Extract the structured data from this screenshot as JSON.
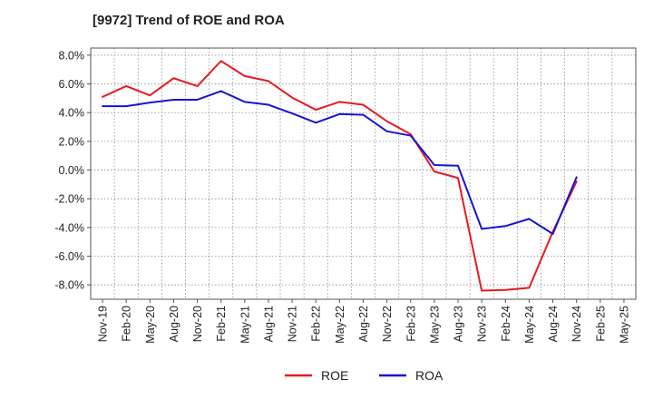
{
  "chart_data": {
    "type": "line",
    "title": "[9972]  Trend of ROE and ROA",
    "xlabel": "",
    "ylabel": "",
    "categories": [
      "Nov-19",
      "Feb-20",
      "May-20",
      "Aug-20",
      "Nov-20",
      "Feb-21",
      "May-21",
      "Aug-21",
      "Nov-21",
      "Feb-22",
      "May-22",
      "Aug-22",
      "Nov-22",
      "Feb-23",
      "May-23",
      "Aug-23",
      "Nov-23",
      "Feb-24",
      "May-24",
      "Aug-24",
      "Nov-24",
      "Feb-25",
      "May-25"
    ],
    "y_tick_labels": [
      "8.0%",
      "6.0%",
      "4.0%",
      "2.0%",
      "0.0%",
      "-2.0%",
      "-4.0%",
      "-6.0%",
      "-8.0%"
    ],
    "ylim": [
      -9.0,
      8.5
    ],
    "grid": true,
    "legend_position": "bottom",
    "series": [
      {
        "name": "ROE",
        "color": "#e8191f",
        "values": [
          5.1,
          5.85,
          5.2,
          6.4,
          5.85,
          7.6,
          6.55,
          6.2,
          5.05,
          4.2,
          4.75,
          4.55,
          3.4,
          2.5,
          -0.1,
          -0.55,
          -8.4,
          -8.35,
          -8.2,
          -4.3,
          -0.8,
          null,
          null
        ]
      },
      {
        "name": "ROA",
        "color": "#1414d6",
        "values": [
          4.45,
          4.45,
          4.7,
          4.9,
          4.9,
          5.5,
          4.75,
          4.55,
          3.95,
          3.3,
          3.9,
          3.85,
          2.7,
          2.4,
          0.35,
          0.3,
          -4.1,
          -3.9,
          -3.4,
          -4.45,
          -0.5,
          null,
          null
        ]
      }
    ]
  }
}
